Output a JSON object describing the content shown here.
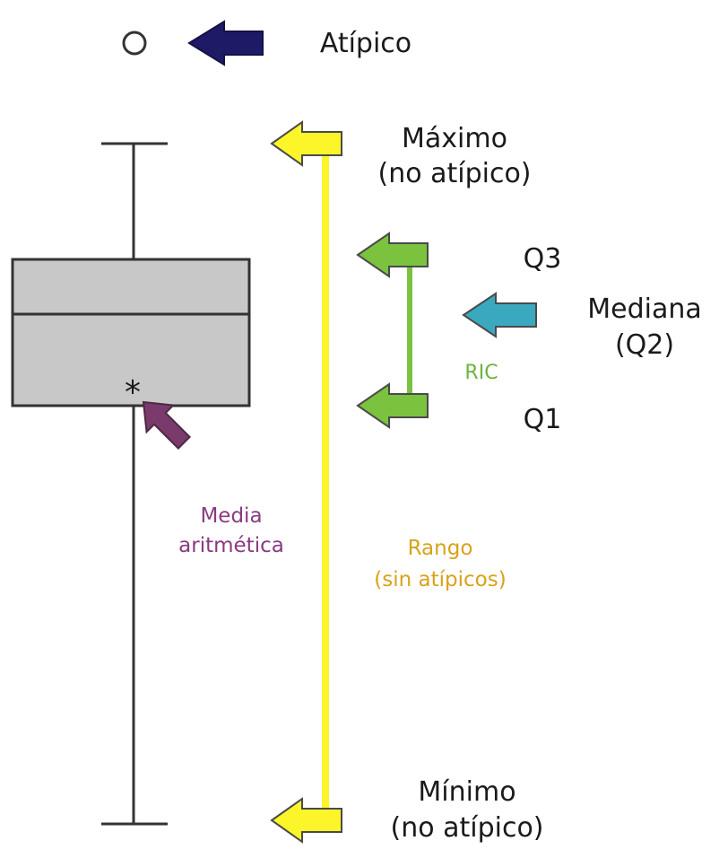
{
  "labels": {
    "outlier": "Atípico",
    "max_line1": "Máximo",
    "max_line2": "(no atípico)",
    "min_line1": "Mínimo",
    "min_line2": "(no atípico)",
    "q3": "Q3",
    "q1": "Q1",
    "median_line1": "Mediana",
    "median_line2": "(Q2)",
    "iqr": "RIC",
    "mean_line1": "Media",
    "mean_line2": "aritmética",
    "range_line1": "Rango",
    "range_line2": "(sin atípicos)",
    "mean_marker": "*"
  },
  "colors": {
    "box_fill": "#c8c8c8",
    "stroke": "#333333",
    "outlier_arrow": "#1f1a66",
    "range": "#fbf52a",
    "iqr": "#7bc23e",
    "iqr_label": "#6db33f",
    "median_arrow": "#3aa9c0",
    "mean_arrow": "#7a3a6c",
    "mean_label": "#8a3a80",
    "range_label": "#d9a21a"
  }
}
